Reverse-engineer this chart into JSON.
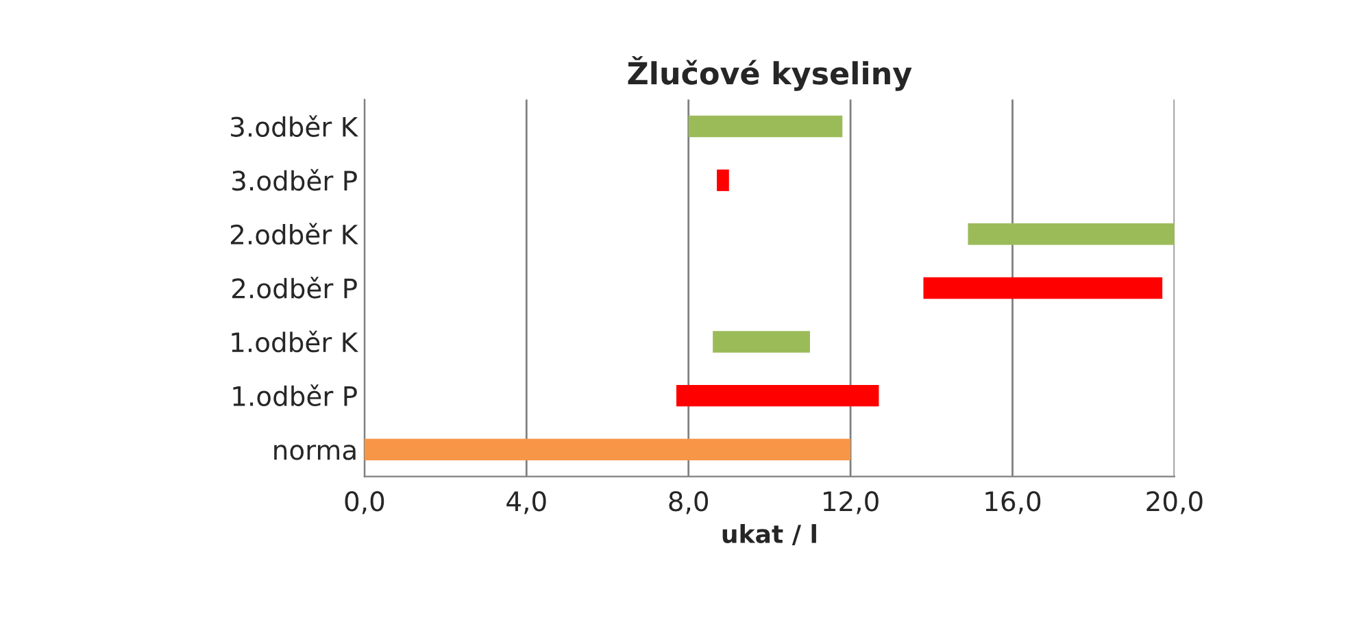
{
  "chart_data": {
    "type": "bar",
    "orientation": "horizontal",
    "title": "Žlučové kyseliny",
    "xlabel": "ukat / l",
    "categories": [
      "3.odběr K",
      "3.odběr P",
      "2.odběr K",
      "2.odběr P",
      "1.odběr K",
      "1.odběr P",
      "norma"
    ],
    "base": [
      8.0,
      8.7,
      14.9,
      13.8,
      8.6,
      7.7,
      0.0
    ],
    "values": [
      3.8,
      0.3,
      5.1,
      5.9,
      2.4,
      5.0,
      12.0
    ],
    "colors": [
      "#9bbb59",
      "#ff0000",
      "#9bbb59",
      "#ff0000",
      "#9bbb59",
      "#ff0000",
      "#f79646"
    ],
    "xlim": [
      0,
      20
    ],
    "xticks": [
      {
        "value": 0,
        "label": "0,0"
      },
      {
        "value": 4,
        "label": "4,0"
      },
      {
        "value": 8,
        "label": "8,0"
      },
      {
        "value": 12,
        "label": "12,0"
      },
      {
        "value": 16,
        "label": "16,0"
      },
      {
        "value": 20,
        "label": "20,0"
      }
    ],
    "grid": "x"
  }
}
